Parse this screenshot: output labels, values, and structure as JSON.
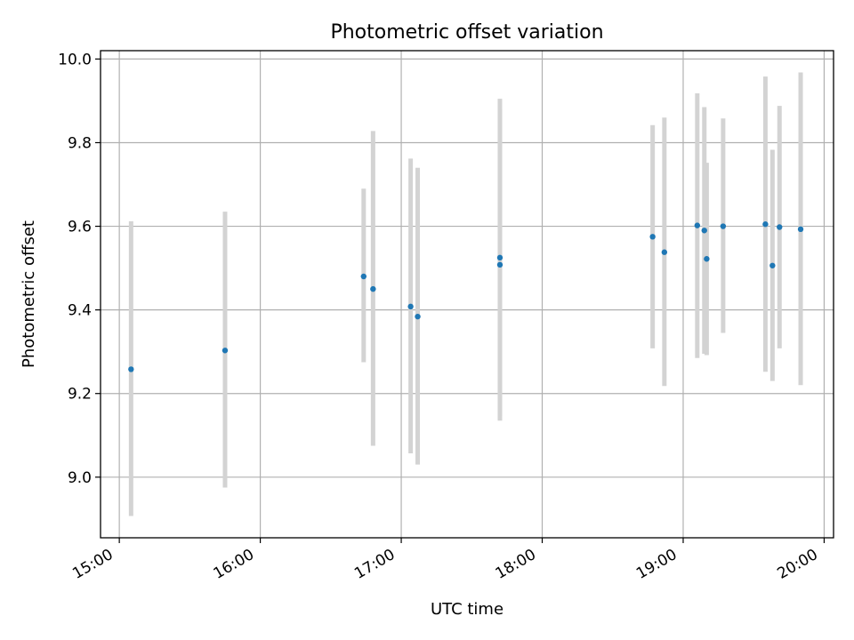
{
  "chart_data": {
    "type": "scatter",
    "title": "Photometric offset variation",
    "xlabel": "UTC time",
    "ylabel": "Photometric offset",
    "x_unit": "time of day (UTC)",
    "xlim": [
      "14:52",
      "20:04"
    ],
    "ylim": [
      8.855,
      10.02
    ],
    "x_ticks": [
      "15:00",
      "16:00",
      "17:00",
      "18:00",
      "19:00",
      "20:00"
    ],
    "y_ticks": [
      "9.0",
      "9.2",
      "9.4",
      "9.6",
      "9.8",
      "10.0"
    ],
    "grid": true,
    "legend": "none",
    "colors": {
      "point": "#1f77b4",
      "errorbar": "#d3d3d3",
      "grid": "#b0b0b0",
      "axes": "#000000"
    },
    "series": [
      {
        "points": [
          {
            "x": "15:05",
            "y": 9.258,
            "low": 8.907,
            "high": 9.612
          },
          {
            "x": "15:45",
            "y": 9.303,
            "low": 8.975,
            "high": 9.635
          },
          {
            "x": "16:44",
            "y": 9.48,
            "low": 9.275,
            "high": 9.69
          },
          {
            "x": "16:48",
            "y": 9.45,
            "low": 9.075,
            "high": 9.828
          },
          {
            "x": "17:04",
            "y": 9.408,
            "low": 9.057,
            "high": 9.762
          },
          {
            "x": "17:07",
            "y": 9.384,
            "low": 9.03,
            "high": 9.74
          },
          {
            "x": "17:42",
            "y": 9.525,
            "low": 9.145,
            "high": 9.905
          },
          {
            "x": "17:42",
            "y": 9.508,
            "low": 9.135,
            "high": 9.88
          },
          {
            "x": "18:47",
            "y": 9.575,
            "low": 9.308,
            "high": 9.842
          },
          {
            "x": "18:52",
            "y": 9.538,
            "low": 9.218,
            "high": 9.86
          },
          {
            "x": "19:06",
            "y": 9.602,
            "low": 9.285,
            "high": 9.918
          },
          {
            "x": "19:09",
            "y": 9.59,
            "low": 9.295,
            "high": 9.885
          },
          {
            "x": "19:10",
            "y": 9.522,
            "low": 9.292,
            "high": 9.752
          },
          {
            "x": "19:17",
            "y": 9.6,
            "low": 9.345,
            "high": 9.858
          },
          {
            "x": "19:35",
            "y": 9.605,
            "low": 9.252,
            "high": 9.958
          },
          {
            "x": "19:38",
            "y": 9.506,
            "low": 9.23,
            "high": 9.783
          },
          {
            "x": "19:41",
            "y": 9.598,
            "low": 9.308,
            "high": 9.888
          },
          {
            "x": "19:50",
            "y": 9.593,
            "low": 9.22,
            "high": 9.968
          }
        ]
      }
    ]
  }
}
